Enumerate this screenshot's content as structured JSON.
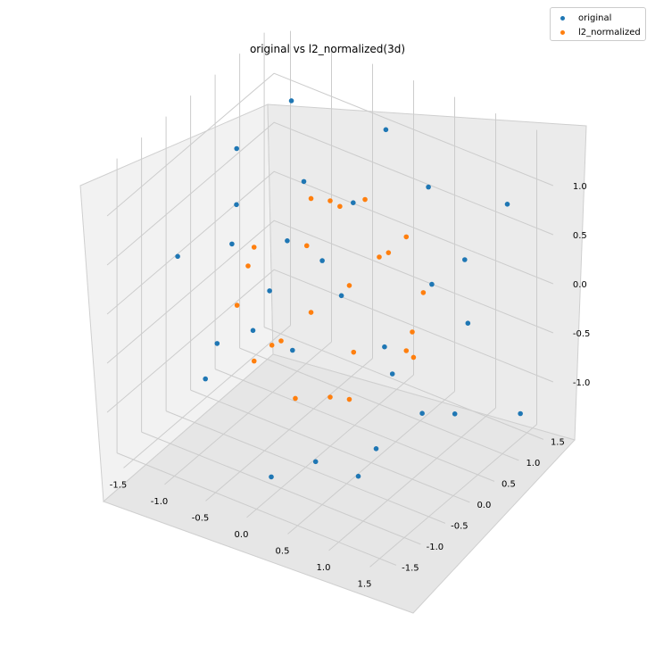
{
  "chart_data": {
    "type": "scatter",
    "projection": "3d",
    "title": "original vs l2_normalized(3d)",
    "xlabel": "",
    "ylabel": "",
    "zlabel": "",
    "xlim": [
      -1.7,
      1.7
    ],
    "ylim": [
      -1.7,
      1.7
    ],
    "zlim": [
      -1.5,
      1.5
    ],
    "x_ticks": [
      "-1.5",
      "-1.0",
      "-0.5",
      "0.0",
      "0.5",
      "1.0",
      "1.5"
    ],
    "y_ticks": [
      "-1.5",
      "-1.0",
      "-0.5",
      "0.0",
      "0.5",
      "1.0",
      "1.5"
    ],
    "z_ticks": [
      "-1.0",
      "-0.5",
      "0.0",
      "0.5",
      "1.0"
    ],
    "grid": true,
    "legend_position": "top-right",
    "series": [
      {
        "name": "original",
        "color": "#1f77b4",
        "points": [
          [
            -1.1,
            1.05,
            1.2
          ],
          [
            0.6,
            -1.3,
            -0.9
          ],
          [
            1.4,
            0.4,
            0.7
          ],
          [
            -0.3,
            -1.5,
            1.1
          ],
          [
            0.9,
            1.3,
            -0.5
          ],
          [
            -1.4,
            -0.2,
            -1.2
          ],
          [
            0.2,
            0.8,
            1.45
          ],
          [
            1.2,
            -0.9,
            0.3
          ],
          [
            -0.7,
            1.4,
            -0.8
          ],
          [
            -1.2,
            -1.1,
            0.5
          ],
          [
            0.5,
            0.1,
            -1.4
          ],
          [
            1.5,
            1.1,
            1.0
          ],
          [
            -0.1,
            -0.6,
            -0.3
          ],
          [
            0.8,
            -1.5,
            1.3
          ],
          [
            -1.5,
            0.6,
            0.2
          ],
          [
            0.3,
            1.5,
            0.6
          ],
          [
            1.1,
            0.7,
            -1.1
          ],
          [
            -0.9,
            -0.4,
            1.4
          ],
          [
            0.0,
            -1.2,
            -1.3
          ],
          [
            -0.5,
            0.3,
            0.9
          ],
          [
            1.3,
            -0.3,
            -0.6
          ],
          [
            -1.3,
            1.3,
            -0.4
          ],
          [
            0.7,
            0.9,
            0.0
          ],
          [
            -0.2,
            -0.9,
            0.4
          ],
          [
            1.0,
            -1.1,
            -1.0
          ],
          [
            -1.0,
            0.1,
            -0.7
          ],
          [
            0.4,
            -0.2,
            1.2
          ],
          [
            1.45,
            1.45,
            -1.3
          ],
          [
            -0.6,
            -1.3,
            -0.1
          ],
          [
            0.1,
            1.1,
            -1.2
          ]
        ]
      },
      {
        "name": "l2_normalized",
        "color": "#ff7f0e",
        "points": [
          [
            0.58,
            0.58,
            0.58
          ],
          [
            -0.58,
            0.58,
            0.58
          ],
          [
            0.58,
            -0.58,
            0.58
          ],
          [
            0.58,
            0.58,
            -0.58
          ],
          [
            -0.58,
            -0.58,
            0.58
          ],
          [
            -0.58,
            0.58,
            -0.58
          ],
          [
            0.58,
            -0.58,
            -0.58
          ],
          [
            -0.58,
            -0.58,
            -0.58
          ],
          [
            1.0,
            0.0,
            0.0
          ],
          [
            -1.0,
            0.0,
            0.0
          ],
          [
            0.0,
            1.0,
            0.0
          ],
          [
            0.0,
            -1.0,
            0.0
          ],
          [
            0.0,
            0.0,
            1.0
          ],
          [
            0.0,
            0.0,
            -1.0
          ],
          [
            0.71,
            0.71,
            0.0
          ],
          [
            -0.71,
            0.71,
            0.0
          ],
          [
            0.71,
            -0.71,
            0.0
          ],
          [
            -0.71,
            -0.71,
            0.0
          ],
          [
            0.71,
            0.0,
            0.71
          ],
          [
            -0.71,
            0.0,
            -0.71
          ],
          [
            0.0,
            0.71,
            0.71
          ],
          [
            0.0,
            -0.71,
            -0.71
          ],
          [
            0.8,
            0.36,
            -0.48
          ],
          [
            -0.36,
            0.8,
            0.48
          ]
        ]
      }
    ]
  }
}
